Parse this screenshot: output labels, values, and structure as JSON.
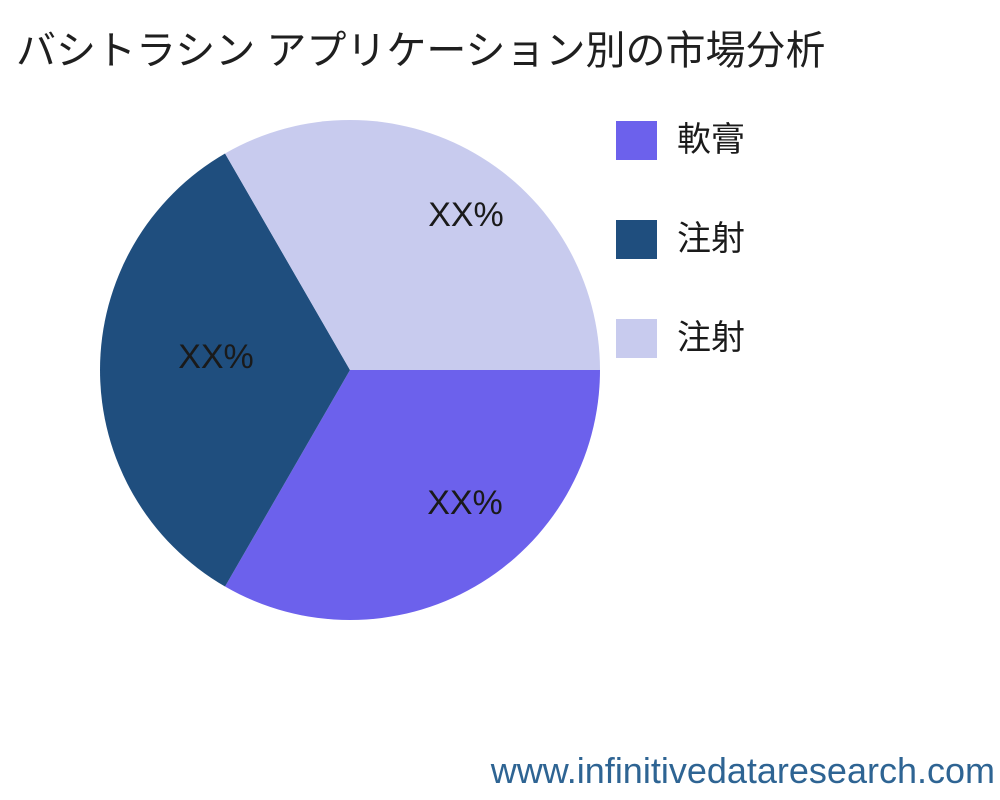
{
  "title": "バシトラシン アプリケーション別の市場分析",
  "footer": {
    "website": "www.infinitivedataresearch.com"
  },
  "colors": {
    "title_text": "#1F1F1F",
    "label_text": "#1A1A1A",
    "footer_text": "#2E6493",
    "background": "#FFFFFF"
  },
  "chart_data": {
    "type": "pie",
    "title": "バシトラシン アプリケーション別の市場分析",
    "start_angle_deg": 0,
    "direction": "clockwise",
    "legend_position": "right",
    "grid": false,
    "slices": [
      {
        "label": "軟膏",
        "display_value": "XX%",
        "value": 33.33,
        "color": "#6C61EC"
      },
      {
        "label": "注射",
        "display_value": "XX%",
        "value": 33.34,
        "color": "#1F4E7E"
      },
      {
        "label": "注射",
        "display_value": "XX%",
        "value": 33.33,
        "color": "#C8CBEE"
      }
    ]
  }
}
